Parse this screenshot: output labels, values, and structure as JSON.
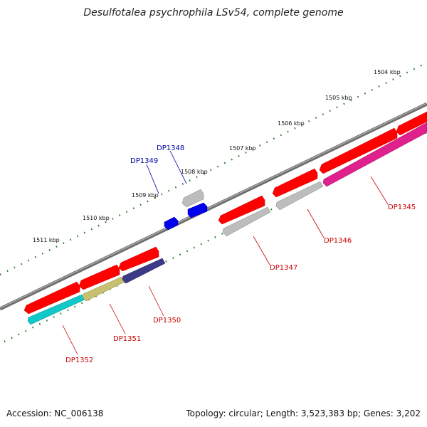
{
  "title": "Desulfotalea psychrophila LSv54, complete genome",
  "footer": {
    "accession": "Accession: NC_006138",
    "stats": "Topology: circular; Length: 3,523,383 bp; Genes: 3,202"
  },
  "kbp_labels": [
    "1504 kbp",
    "1505 kbp",
    "1506 kbp",
    "1507 kbp",
    "1508 kbp",
    "1509 kbp",
    "1510 kbp",
    "1511 kbp"
  ],
  "genes": [
    {
      "name": "DP1345",
      "color": "#cc0000"
    },
    {
      "name": "DP1346",
      "color": "#cc0000"
    },
    {
      "name": "DP1347",
      "color": "#cc0000"
    },
    {
      "name": "DP1348",
      "color": "#0000aa"
    },
    {
      "name": "DP1349",
      "color": "#0000aa"
    },
    {
      "name": "DP1350",
      "color": "#cc0000"
    },
    {
      "name": "DP1351",
      "color": "#cc0000"
    },
    {
      "name": "DP1352",
      "color": "#cc0000"
    }
  ],
  "colors": {
    "backbone": "#7a7a7a",
    "forward_gene": "#ff0000",
    "reverse_gene_gray": "#bdbdbd",
    "small_gene": "#0000ee",
    "dp1345_track": "#e0208c",
    "dp1350_track": "#3c3a86",
    "dp1351_track": "#c8c070",
    "dp1352_track": "#10c8c8",
    "tick": "#1a7a1a"
  }
}
